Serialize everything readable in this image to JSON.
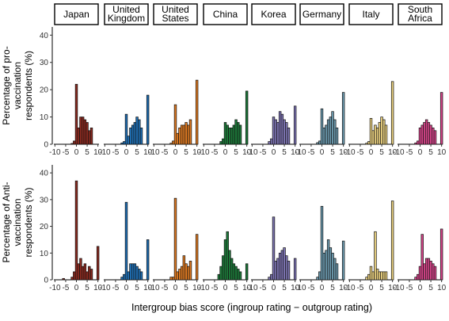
{
  "chart_data": {
    "type": "bar",
    "subtype": "faceted-histogram",
    "xlabel": "Intergroup bias score (ingroup rating − outgroup rating)",
    "x_bins": [
      -10,
      -9,
      -8,
      -7,
      -6,
      -5,
      -4,
      -3,
      -2,
      -1,
      0,
      1,
      2,
      3,
      4,
      5,
      6,
      7,
      8,
      9,
      10
    ],
    "x_ticks": [
      -10,
      -5,
      0,
      5,
      10
    ],
    "xlim": [
      -10,
      10
    ],
    "y_ticks": [
      0,
      10,
      20,
      30,
      40
    ],
    "ylim": [
      0,
      43
    ],
    "countries": [
      {
        "name": "Japan",
        "label_lines": [
          "Japan"
        ],
        "color": "#8b2a20"
      },
      {
        "name": "United Kingdom",
        "label_lines": [
          "United",
          "Kingdom"
        ],
        "color": "#1f6fb4"
      },
      {
        "name": "United States",
        "label_lines": [
          "United",
          "States"
        ],
        "color": "#e07b22"
      },
      {
        "name": "China",
        "label_lines": [
          "China"
        ],
        "color": "#1d7a3a"
      },
      {
        "name": "Korea",
        "label_lines": [
          "Korea"
        ],
        "color": "#7d74b2"
      },
      {
        "name": "Germany",
        "label_lines": [
          "Germany"
        ],
        "color": "#6b99ad"
      },
      {
        "name": "Italy",
        "label_lines": [
          "Italy"
        ],
        "color": "#e8cf7f"
      },
      {
        "name": "South Africa",
        "label_lines": [
          "South",
          "Africa"
        ],
        "color": "#d6458a"
      }
    ],
    "rows": [
      {
        "ylabel_lines": [
          "Percentage of pro-",
          "vaccination",
          "respondents (%)"
        ],
        "series": [
          {
            "country": "Japan",
            "values": [
              0,
              0,
              0,
              0,
              0,
              0,
              0,
              0,
              0.3,
              1.2,
              22,
              6,
              10,
              10,
              9,
              8,
              5,
              6,
              0,
              0,
              0
            ]
          },
          {
            "country": "United Kingdom",
            "values": [
              0,
              0,
              0,
              0,
              0,
              0,
              0,
              0,
              0.5,
              1,
              11,
              3,
              6,
              7,
              8,
              10,
              9,
              6,
              0,
              0,
              18
            ]
          },
          {
            "country": "United States",
            "values": [
              0,
              0,
              0,
              0,
              0,
              0,
              0,
              0,
              0.4,
              1.2,
              14.5,
              4,
              6,
              7,
              7,
              8,
              7,
              9,
              0,
              0,
              23.5
            ]
          },
          {
            "country": "China",
            "values": [
              0,
              0,
              0,
              0,
              0,
              0,
              0,
              0,
              1,
              2,
              8,
              7,
              6,
              6,
              7,
              9,
              8,
              7,
              0,
              0,
              19.5
            ]
          },
          {
            "country": "Korea",
            "values": [
              0,
              0,
              0,
              0,
              0,
              0,
              0,
              0,
              1,
              2,
              10,
              9,
              8,
              12,
              11,
              9,
              8,
              6,
              0,
              0,
              14
            ]
          },
          {
            "country": "Germany",
            "values": [
              0,
              0,
              0,
              0,
              0,
              0,
              0,
              0,
              0.6,
              1.2,
              13,
              6,
              7,
              9,
              10,
              12,
              9,
              6,
              0,
              0,
              19
            ]
          },
          {
            "country": "Italy",
            "values": [
              0,
              0,
              0,
              0,
              0,
              0,
              0,
              0,
              0.4,
              1,
              9.5,
              5,
              7,
              6,
              8,
              10,
              9,
              7,
              0,
              0,
              23
            ]
          },
          {
            "country": "South Africa",
            "values": [
              0,
              0,
              0,
              0,
              0,
              0,
              0,
              0,
              0.5,
              1.2,
              6,
              7,
              8,
              9,
              8,
              7,
              6,
              5,
              0,
              0,
              19
            ]
          }
        ]
      },
      {
        "ylabel_lines": [
          "Percentage of Anti-",
          "vaccination",
          "respondents (%)"
        ],
        "series": [
          {
            "country": "Japan",
            "values": [
              0,
              0,
              0,
              0,
              0.5,
              0,
              0,
              0,
              1,
              3,
              37,
              6,
              8,
              5,
              6,
              3,
              5,
              4,
              0,
              0,
              12.5
            ]
          },
          {
            "country": "United Kingdom",
            "values": [
              0,
              0,
              0,
              0,
              0,
              0,
              0,
              0,
              1,
              2,
              29,
              3,
              6,
              6,
              6,
              5,
              4,
              3,
              0,
              0,
              15
            ]
          },
          {
            "country": "United States",
            "values": [
              0,
              0,
              0,
              0,
              0,
              0,
              0,
              0,
              1,
              1,
              30.5,
              3,
              4,
              5,
              9,
              6,
              5,
              7,
              0,
              0,
              17
            ]
          },
          {
            "country": "China",
            "values": [
              0,
              0,
              0,
              0,
              0,
              0,
              0,
              2,
              5,
              9,
              15,
              18,
              11,
              8,
              6,
              5,
              4,
              3,
              0,
              0,
              6
            ]
          },
          {
            "country": "Korea",
            "values": [
              0,
              0,
              0,
              0,
              0,
              0,
              0,
              0,
              1,
              2,
              23.5,
              7,
              8,
              10,
              11,
              12,
              9,
              7,
              0,
              0,
              8
            ]
          },
          {
            "country": "Germany",
            "values": [
              0,
              0,
              0,
              0,
              0,
              0,
              0,
              0,
              1,
              3,
              27.5,
              10,
              11,
              15,
              12,
              10,
              8,
              6,
              0,
              0,
              14.5
            ]
          },
          {
            "country": "Italy",
            "values": [
              0,
              0,
              0,
              0,
              0,
              0,
              0,
              0,
              1,
              2,
              5,
              3,
              18,
              4,
              3,
              3,
              3,
              3,
              0,
              0,
              29.5
            ]
          },
          {
            "country": "South Africa",
            "values": [
              0,
              0,
              0,
              0,
              0,
              0,
              0,
              0,
              1,
              2,
              5,
              17,
              6,
              8,
              8,
              7,
              6,
              5,
              0,
              0,
              19
            ]
          }
        ]
      }
    ],
    "grid": false,
    "legend": "none"
  }
}
